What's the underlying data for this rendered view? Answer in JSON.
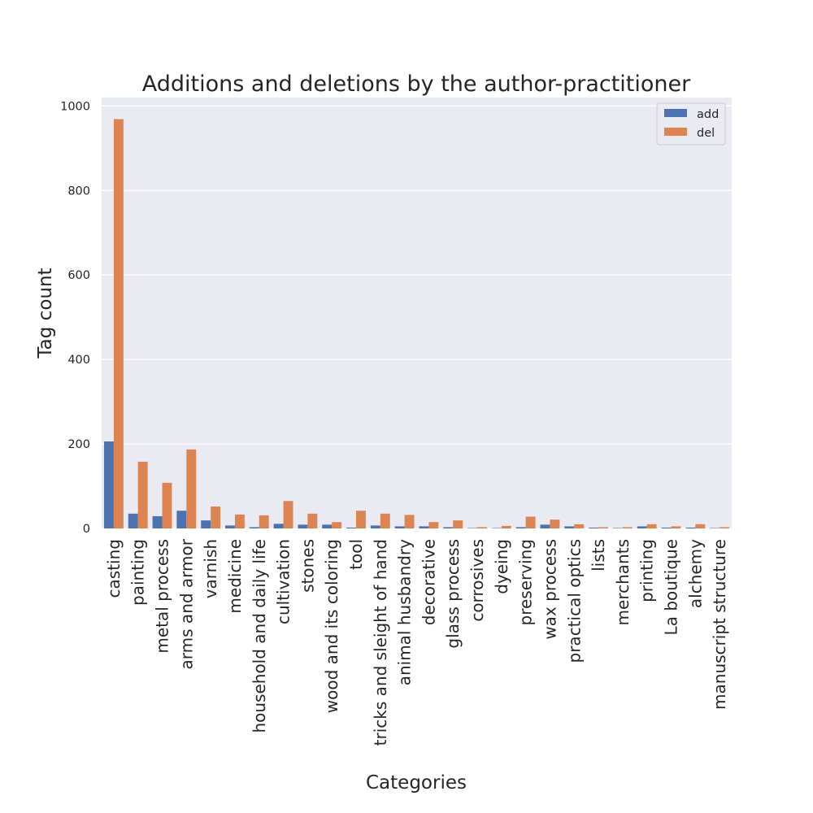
{
  "chart_data": {
    "type": "bar",
    "title": "Additions and deletions by the author-practitioner",
    "xlabel": "Categories",
    "ylabel": "Tag count",
    "ylim": [
      0,
      1020
    ],
    "yticks": [
      0,
      200,
      400,
      600,
      800,
      1000
    ],
    "grid": true,
    "legend_position": "top-right",
    "categories": [
      "casting",
      "painting",
      "metal process",
      "arms and armor",
      "varnish",
      "medicine",
      "household and daily life",
      "cultivation",
      "stones",
      "wood and its coloring",
      "tool",
      "tricks and sleight of hand",
      "animal husbandry",
      "decorative",
      "glass process",
      "corrosives",
      "dyeing",
      "preserving",
      "wax process",
      "practical optics",
      "lists",
      "merchants",
      "printing",
      "La boutique",
      "alchemy",
      "manuscript structure"
    ],
    "series": [
      {
        "name": "add",
        "color": "#4c72b0",
        "values": [
          206,
          35,
          29,
          42,
          19,
          7,
          3,
          11,
          9,
          9,
          2,
          7,
          5,
          5,
          3,
          1,
          1,
          3,
          9,
          5,
          2,
          1,
          5,
          2,
          2,
          1
        ]
      },
      {
        "name": "del",
        "color": "#dd8452",
        "values": [
          969,
          158,
          108,
          187,
          52,
          33,
          31,
          65,
          35,
          15,
          42,
          35,
          32,
          15,
          19,
          3,
          6,
          28,
          21,
          10,
          3,
          3,
          10,
          5,
          10,
          3
        ]
      }
    ]
  }
}
